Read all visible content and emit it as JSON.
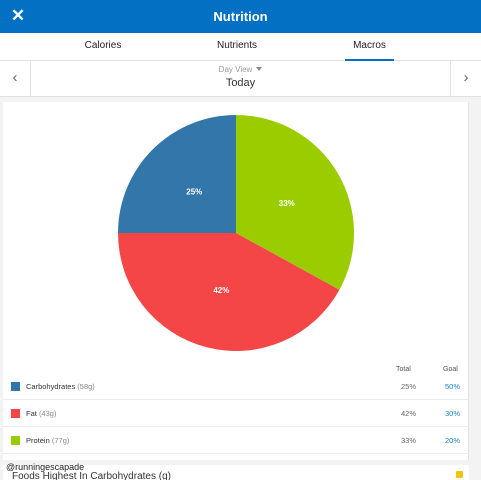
{
  "header": {
    "title": "Nutrition",
    "close_icon": "close-icon"
  },
  "tabs": [
    {
      "label": "Calories",
      "active": false
    },
    {
      "label": "Nutrients",
      "active": false
    },
    {
      "label": "Macros",
      "active": true
    }
  ],
  "day_nav": {
    "view_label": "Day View",
    "day_label": "Today"
  },
  "chart_data": {
    "type": "pie",
    "slices": [
      {
        "label": "Carbohydrates",
        "value": 25,
        "display": "25%",
        "color": "#3276aa"
      },
      {
        "label": "Protein",
        "value": 33,
        "display": "33%",
        "color": "#9bcc00"
      },
      {
        "label": "Fat",
        "value": 42,
        "display": "42%",
        "color": "#f44646"
      }
    ]
  },
  "macros_table": {
    "headers": {
      "total": "Total",
      "goal": "Goal"
    },
    "rows": [
      {
        "name": "Carbohydrates",
        "grams": "(58g)",
        "total": "25%",
        "goal": "50%",
        "color": "#3276aa"
      },
      {
        "name": "Fat",
        "grams": "(43g)",
        "total": "42%",
        "goal": "30%",
        "color": "#f44646"
      },
      {
        "name": "Protein",
        "grams": "(77g)",
        "total": "33%",
        "goal": "20%",
        "color": "#9bcc00"
      }
    ]
  },
  "watermark": "@runningescapade",
  "foods_section": {
    "title": "Foods Highest In Carbohydrates (g)"
  }
}
